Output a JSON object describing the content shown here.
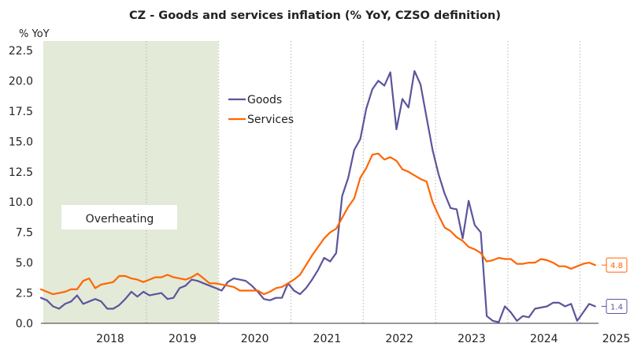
{
  "chart_data": {
    "type": "line",
    "title": "CZ - Goods and services inflation (% YoY, CZSO definition)",
    "ylabel": "% YoY",
    "xlabel": "",
    "ylim": [
      0,
      22.5
    ],
    "yticks": [
      "0.0",
      "2.5",
      "5.0",
      "7.5",
      "10.0",
      "12.5",
      "15.0",
      "17.5",
      "20.0",
      "22.5"
    ],
    "xticks": [
      "2018",
      "2019",
      "2020",
      "2021",
      "2022",
      "2023",
      "2024",
      "2025"
    ],
    "x_start": "2017-07",
    "grid": "vertical dotted lines at year boundaries",
    "legend": "top-center",
    "shaded_region": {
      "label": "Overheating",
      "from": "2017-07",
      "to": "2019-12",
      "color": "#e3ead8"
    },
    "series": [
      {
        "name": "Goods",
        "color": "#5b559b",
        "end_label": "1.4",
        "values": [
          2.1,
          1.9,
          1.4,
          1.2,
          1.6,
          1.8,
          2.3,
          1.6,
          1.8,
          2.0,
          1.8,
          1.2,
          1.2,
          1.5,
          2.0,
          2.6,
          2.2,
          2.6,
          2.3,
          2.4,
          2.5,
          2.0,
          2.1,
          2.9,
          3.1,
          3.6,
          3.5,
          3.3,
          3.1,
          2.9,
          2.7,
          3.4,
          3.7,
          3.6,
          3.5,
          3.1,
          2.6,
          2.0,
          1.9,
          2.1,
          2.1,
          3.3,
          2.7,
          2.4,
          2.9,
          3.6,
          4.4,
          5.4,
          5.1,
          5.8,
          10.5,
          12.0,
          14.3,
          15.2,
          17.7,
          19.3,
          20.0,
          19.6,
          20.7,
          16.0,
          18.5,
          17.8,
          20.8,
          19.7,
          17.0,
          14.3,
          12.3,
          10.7,
          9.5,
          9.4,
          7.0,
          10.1,
          8.1,
          7.5,
          0.6,
          0.2,
          0.1,
          1.4,
          0.9,
          0.2,
          0.6,
          0.5,
          1.2,
          1.3,
          1.4,
          1.7,
          1.7,
          1.4,
          1.6,
          0.2,
          0.9,
          1.6,
          1.4
        ]
      },
      {
        "name": "Services",
        "color": "#ff6600",
        "end_label": "4.8",
        "values": [
          2.8,
          2.6,
          2.4,
          2.5,
          2.6,
          2.8,
          2.8,
          3.5,
          3.7,
          2.9,
          3.2,
          3.3,
          3.4,
          3.9,
          3.9,
          3.7,
          3.6,
          3.4,
          3.6,
          3.8,
          3.8,
          4.0,
          3.8,
          3.7,
          3.6,
          3.8,
          4.1,
          3.7,
          3.3,
          3.3,
          3.2,
          3.1,
          3.0,
          2.7,
          2.7,
          2.7,
          2.7,
          2.4,
          2.6,
          2.9,
          3.0,
          3.3,
          3.6,
          4.0,
          4.8,
          5.6,
          6.3,
          7.0,
          7.5,
          7.8,
          8.7,
          9.6,
          10.3,
          12.0,
          12.8,
          13.9,
          14.0,
          13.5,
          13.7,
          13.4,
          12.7,
          12.5,
          12.2,
          11.9,
          11.7,
          10.0,
          8.9,
          7.9,
          7.6,
          7.1,
          6.8,
          6.3,
          6.1,
          5.8,
          5.1,
          5.2,
          5.4,
          5.3,
          5.3,
          4.9,
          4.9,
          5.0,
          5.0,
          5.3,
          5.2,
          5.0,
          4.7,
          4.7,
          4.5,
          4.7,
          4.9,
          5.0,
          4.8
        ]
      }
    ]
  }
}
